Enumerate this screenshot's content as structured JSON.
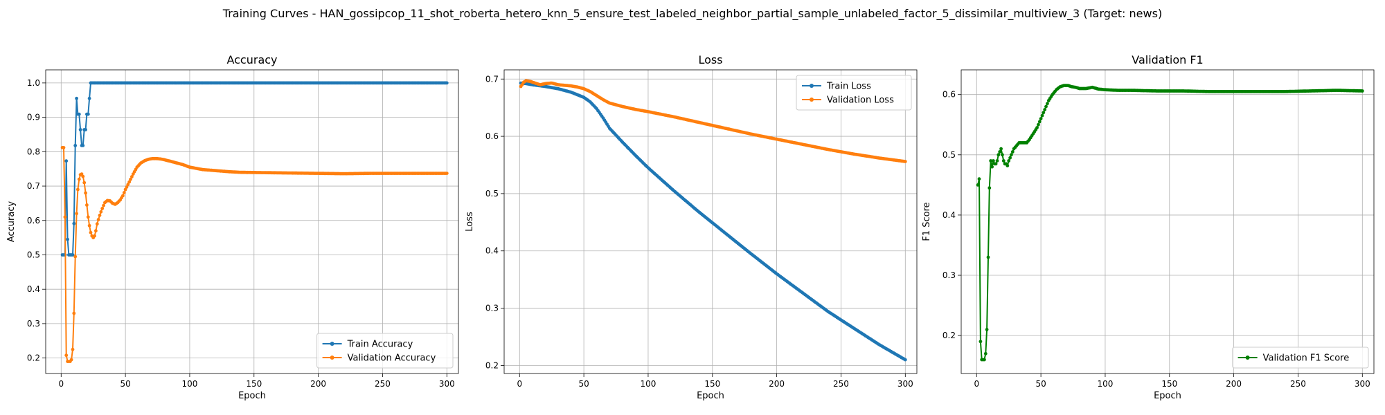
{
  "figure": {
    "suptitle": "Training Curves - HAN_gossipcop_11_shot_roberta_hetero_knn_5_ensure_test_labeled_neighbor_partial_sample_unlabeled_factor_5_dissimilar_multiview_3 (Target: news)"
  },
  "chart_data": [
    {
      "type": "line",
      "title": "Accuracy",
      "xlabel": "Epoch",
      "ylabel": "Accuracy",
      "xlim": [
        -12,
        309
      ],
      "ylim": [
        0.155,
        1.038
      ],
      "xticks": [
        0,
        50,
        100,
        150,
        200,
        250,
        300
      ],
      "yticks": [
        0.2,
        0.3,
        0.4,
        0.5,
        0.6,
        0.7,
        0.8,
        0.9,
        1.0
      ],
      "ytick_labels": [
        "0.2",
        "0.3",
        "0.4",
        "0.5",
        "0.6",
        "0.7",
        "0.8",
        "0.9",
        "1.0"
      ],
      "grid": true,
      "legend_loc": "lower-right",
      "series": [
        {
          "name": "Train Accuracy",
          "color": "#1f77b4",
          "points": [
            [
              1,
              0.5
            ],
            [
              2,
              0.5
            ],
            [
              3,
              0.5
            ],
            [
              4,
              0.773
            ],
            [
              5,
              0.545
            ],
            [
              6,
              0.5
            ],
            [
              7,
              0.5
            ],
            [
              8,
              0.5
            ],
            [
              9,
              0.5
            ],
            [
              10,
              0.591
            ],
            [
              11,
              0.818
            ],
            [
              12,
              0.955
            ],
            [
              13,
              0.909
            ],
            [
              14,
              0.909
            ],
            [
              15,
              0.864
            ],
            [
              16,
              0.818
            ],
            [
              17,
              0.818
            ],
            [
              18,
              0.864
            ],
            [
              19,
              0.864
            ],
            [
              20,
              0.909
            ],
            [
              21,
              0.909
            ],
            [
              22,
              0.955
            ],
            [
              23,
              1.0
            ],
            [
              300,
              1.0
            ]
          ]
        },
        {
          "name": "Validation Accuracy",
          "color": "#ff7f0e",
          "points": [
            [
              1,
              0.812
            ],
            [
              2,
              0.812
            ],
            [
              3,
              0.61
            ],
            [
              4,
              0.208
            ],
            [
              5,
              0.19
            ],
            [
              6,
              0.19
            ],
            [
              7,
              0.19
            ],
            [
              8,
              0.195
            ],
            [
              9,
              0.225
            ],
            [
              10,
              0.33
            ],
            [
              11,
              0.495
            ],
            [
              12,
              0.62
            ],
            [
              13,
              0.69
            ],
            [
              14,
              0.72
            ],
            [
              15,
              0.733
            ],
            [
              16,
              0.735
            ],
            [
              17,
              0.728
            ],
            [
              18,
              0.71
            ],
            [
              19,
              0.68
            ],
            [
              20,
              0.645
            ],
            [
              21,
              0.61
            ],
            [
              22,
              0.585
            ],
            [
              23,
              0.565
            ],
            [
              24,
              0.555
            ],
            [
              25,
              0.55
            ],
            [
              26,
              0.555
            ],
            [
              27,
              0.57
            ],
            [
              28,
              0.59
            ],
            [
              30,
              0.615
            ],
            [
              32,
              0.635
            ],
            [
              34,
              0.652
            ],
            [
              36,
              0.658
            ],
            [
              38,
              0.657
            ],
            [
              40,
              0.65
            ],
            [
              42,
              0.647
            ],
            [
              44,
              0.652
            ],
            [
              46,
              0.66
            ],
            [
              48,
              0.672
            ],
            [
              50,
              0.69
            ],
            [
              53,
              0.712
            ],
            [
              56,
              0.735
            ],
            [
              59,
              0.755
            ],
            [
              62,
              0.767
            ],
            [
              65,
              0.774
            ],
            [
              68,
              0.778
            ],
            [
              71,
              0.78
            ],
            [
              74,
              0.78
            ],
            [
              77,
              0.779
            ],
            [
              80,
              0.777
            ],
            [
              85,
              0.772
            ],
            [
              90,
              0.767
            ],
            [
              95,
              0.762
            ],
            [
              100,
              0.755
            ],
            [
              110,
              0.748
            ],
            [
              120,
              0.745
            ],
            [
              130,
              0.742
            ],
            [
              140,
              0.74
            ],
            [
              160,
              0.739
            ],
            [
              180,
              0.738
            ],
            [
              200,
              0.737
            ],
            [
              220,
              0.736
            ],
            [
              240,
              0.737
            ],
            [
              260,
              0.737
            ],
            [
              280,
              0.737
            ],
            [
              300,
              0.737
            ]
          ]
        }
      ]
    },
    {
      "type": "line",
      "title": "Loss",
      "xlabel": "Epoch",
      "ylabel": "Loss",
      "xlim": [
        -12,
        309
      ],
      "ylim": [
        0.186,
        0.716
      ],
      "xticks": [
        0,
        50,
        100,
        150,
        200,
        250,
        300
      ],
      "yticks": [
        0.2,
        0.3,
        0.4,
        0.5,
        0.6,
        0.7
      ],
      "ytick_labels": [
        "0.2",
        "0.3",
        "0.4",
        "0.5",
        "0.6",
        "0.7"
      ],
      "grid": true,
      "legend_loc": "upper-right",
      "series": [
        {
          "name": "Train Loss",
          "color": "#1f77b4",
          "points": [
            [
              1,
              0.693
            ],
            [
              5,
              0.692
            ],
            [
              10,
              0.69
            ],
            [
              20,
              0.687
            ],
            [
              30,
              0.683
            ],
            [
              40,
              0.677
            ],
            [
              50,
              0.668
            ],
            [
              55,
              0.66
            ],
            [
              60,
              0.648
            ],
            [
              65,
              0.632
            ],
            [
              70,
              0.614
            ],
            [
              80,
              0.59
            ],
            [
              90,
              0.567
            ],
            [
              100,
              0.545
            ],
            [
              120,
              0.505
            ],
            [
              140,
              0.467
            ],
            [
              160,
              0.431
            ],
            [
              180,
              0.395
            ],
            [
              200,
              0.36
            ],
            [
              220,
              0.327
            ],
            [
              240,
              0.294
            ],
            [
              260,
              0.265
            ],
            [
              280,
              0.236
            ],
            [
              300,
              0.21
            ]
          ]
        },
        {
          "name": "Validation Loss",
          "color": "#ff7f0e",
          "points": [
            [
              1,
              0.687
            ],
            [
              2,
              0.69
            ],
            [
              3,
              0.694
            ],
            [
              5,
              0.697
            ],
            [
              8,
              0.696
            ],
            [
              12,
              0.693
            ],
            [
              16,
              0.69
            ],
            [
              20,
              0.692
            ],
            [
              25,
              0.693
            ],
            [
              30,
              0.69
            ],
            [
              35,
              0.689
            ],
            [
              40,
              0.688
            ],
            [
              45,
              0.686
            ],
            [
              50,
              0.683
            ],
            [
              55,
              0.678
            ],
            [
              60,
              0.671
            ],
            [
              65,
              0.664
            ],
            [
              70,
              0.658
            ],
            [
              80,
              0.652
            ],
            [
              90,
              0.647
            ],
            [
              100,
              0.643
            ],
            [
              120,
              0.634
            ],
            [
              140,
              0.624
            ],
            [
              160,
              0.614
            ],
            [
              180,
              0.604
            ],
            [
              200,
              0.595
            ],
            [
              220,
              0.586
            ],
            [
              240,
              0.577
            ],
            [
              260,
              0.569
            ],
            [
              280,
              0.562
            ],
            [
              300,
              0.556
            ]
          ]
        }
      ]
    },
    {
      "type": "line",
      "title": "Validation F1",
      "xlabel": "Epoch",
      "ylabel": "F1 Score",
      "xlim": [
        -12,
        309
      ],
      "ylim": [
        0.137,
        0.641
      ],
      "xticks": [
        0,
        50,
        100,
        150,
        200,
        250,
        300
      ],
      "yticks": [
        0.2,
        0.3,
        0.4,
        0.5,
        0.6
      ],
      "ytick_labels": [
        "0.2",
        "0.3",
        "0.4",
        "0.5",
        "0.6"
      ],
      "grid": true,
      "legend_loc": "lower-right",
      "series": [
        {
          "name": "Validation F1 Score",
          "color": "#008000",
          "points": [
            [
              1,
              0.45
            ],
            [
              2,
              0.46
            ],
            [
              3,
              0.19
            ],
            [
              4,
              0.16
            ],
            [
              5,
              0.16
            ],
            [
              6,
              0.16
            ],
            [
              7,
              0.17
            ],
            [
              8,
              0.21
            ],
            [
              9,
              0.33
            ],
            [
              10,
              0.445
            ],
            [
              11,
              0.49
            ],
            [
              12,
              0.48
            ],
            [
              13,
              0.49
            ],
            [
              14,
              0.485
            ],
            [
              15,
              0.485
            ],
            [
              16,
              0.49
            ],
            [
              17,
              0.5
            ],
            [
              18,
              0.505
            ],
            [
              19,
              0.51
            ],
            [
              20,
              0.5
            ],
            [
              21,
              0.49
            ],
            [
              22,
              0.485
            ],
            [
              23,
              0.485
            ],
            [
              24,
              0.482
            ],
            [
              25,
              0.49
            ],
            [
              27,
              0.5
            ],
            [
              29,
              0.51
            ],
            [
              31,
              0.515
            ],
            [
              33,
              0.52
            ],
            [
              35,
              0.52
            ],
            [
              37,
              0.52
            ],
            [
              39,
              0.52
            ],
            [
              41,
              0.525
            ],
            [
              44,
              0.535
            ],
            [
              47,
              0.545
            ],
            [
              50,
              0.56
            ],
            [
              53,
              0.575
            ],
            [
              56,
              0.59
            ],
            [
              59,
              0.6
            ],
            [
              62,
              0.608
            ],
            [
              65,
              0.613
            ],
            [
              68,
              0.615
            ],
            [
              71,
              0.615
            ],
            [
              74,
              0.613
            ],
            [
              77,
              0.612
            ],
            [
              80,
              0.61
            ],
            [
              85,
              0.61
            ],
            [
              90,
              0.612
            ],
            [
              95,
              0.609
            ],
            [
              100,
              0.608
            ],
            [
              110,
              0.607
            ],
            [
              120,
              0.607
            ],
            [
              140,
              0.606
            ],
            [
              160,
              0.606
            ],
            [
              180,
              0.605
            ],
            [
              200,
              0.605
            ],
            [
              220,
              0.605
            ],
            [
              240,
              0.605
            ],
            [
              260,
              0.606
            ],
            [
              280,
              0.607
            ],
            [
              300,
              0.606
            ]
          ]
        }
      ]
    }
  ]
}
